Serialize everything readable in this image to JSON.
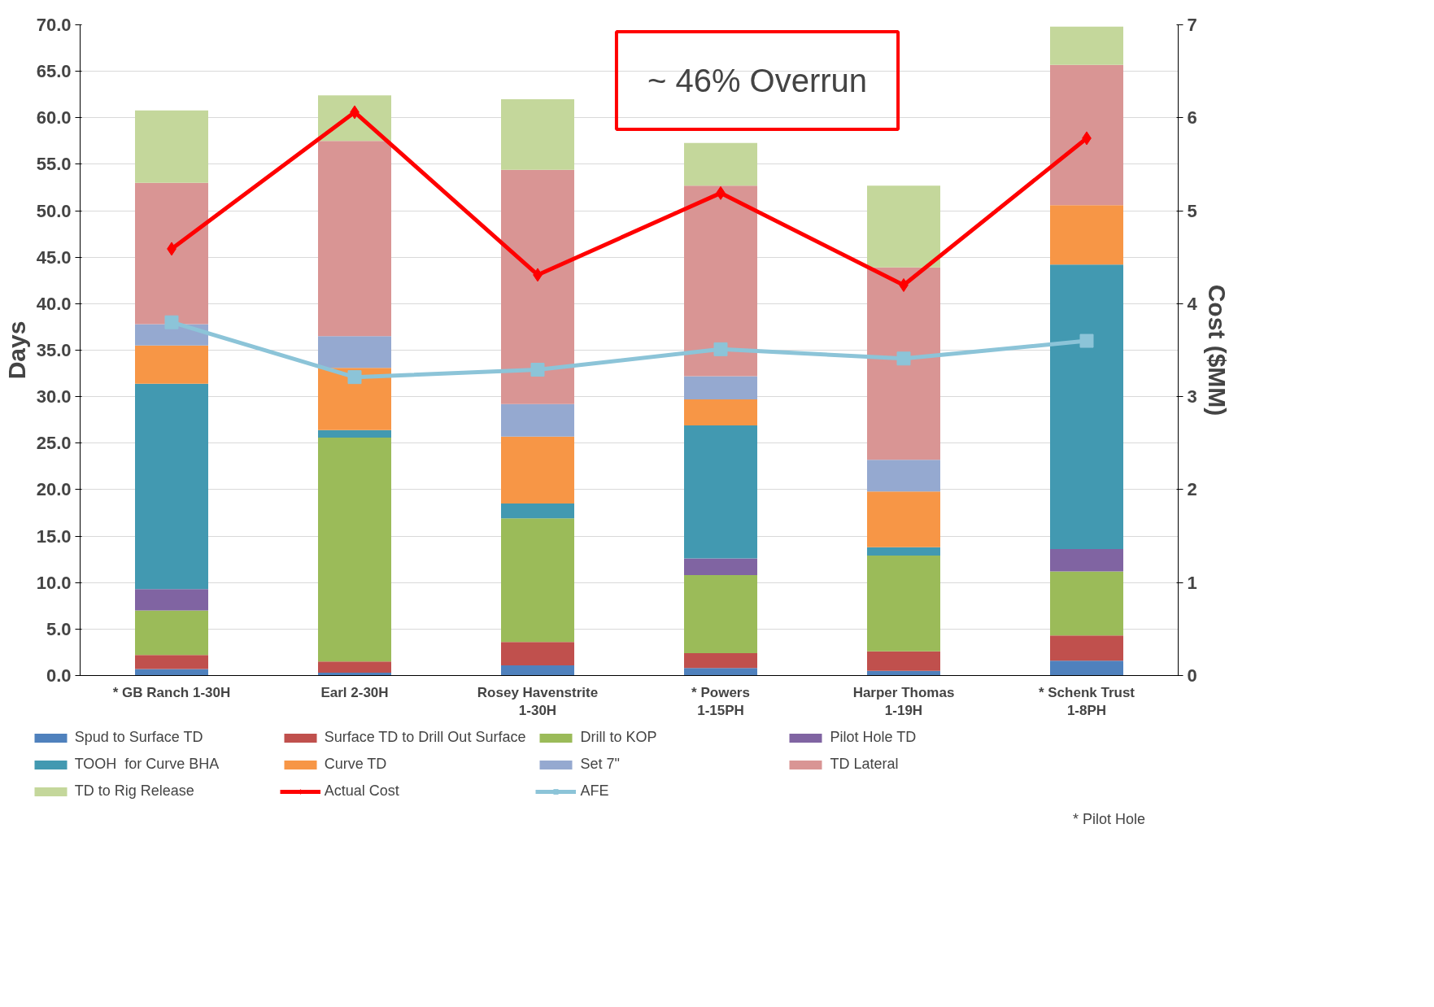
{
  "chart_data": {
    "type": "bar",
    "stacked": true,
    "ylabel": "Days",
    "y2label": "Cost ($MM)",
    "categories": [
      "* GB Ranch 1-30H",
      "Earl 2-30H",
      "Rosey Havenstrite\n1-30H",
      "* Powers\n1-15PH",
      "Harper Thomas\n1-19H",
      "* Schenk Trust\n1-8PH"
    ],
    "series": [
      {
        "name": "Spud to Surface TD",
        "color": "#4f81bd",
        "values": [
          0.7,
          0.3,
          1.1,
          0.8,
          0.5,
          1.6
        ]
      },
      {
        "name": "Surface TD to Drill Out Surface",
        "color": "#c0504d",
        "values": [
          1.5,
          1.2,
          2.5,
          1.6,
          2.1,
          2.7
        ]
      },
      {
        "name": "Drill to KOP",
        "color": "#9bbb59",
        "values": [
          4.8,
          24.1,
          13.3,
          8.4,
          10.3,
          6.9
        ]
      },
      {
        "name": "Pilot Hole TD",
        "color": "#8064a2",
        "values": [
          2.3,
          0,
          0,
          1.8,
          0,
          2.4
        ]
      },
      {
        "name": "TOOH  for Curve BHA",
        "color": "#4299b1",
        "values": [
          22.1,
          0.8,
          1.6,
          14.3,
          0.9,
          30.6
        ]
      },
      {
        "name": "Curve TD",
        "color": "#f79646",
        "values": [
          4.1,
          6.7,
          7.2,
          2.8,
          6.0,
          6.4
        ]
      },
      {
        "name": "Set 7\"",
        "color": "#95a9d0",
        "values": [
          2.3,
          3.4,
          3.5,
          2.5,
          3.4,
          0
        ]
      },
      {
        "name": "TD Lateral",
        "color": "#d99594",
        "values": [
          15.2,
          21.0,
          25.2,
          20.5,
          20.7,
          15.1
        ]
      },
      {
        "name": "TD to Rig Release",
        "color": "#c4d79b",
        "values": [
          7.8,
          4.9,
          7.6,
          4.6,
          8.8,
          4.1
        ]
      },
      {
        "name": "Actual Cost",
        "type": "line",
        "axis": "y2",
        "marker": "diamond",
        "color": "#ff0000",
        "values": [
          4.59,
          6.06,
          4.31,
          5.19,
          4.2,
          5.78
        ]
      },
      {
        "name": "AFE",
        "type": "line",
        "axis": "y2",
        "marker": "square",
        "color": "#8cc4d8",
        "values": [
          3.8,
          3.21,
          3.29,
          3.51,
          3.41,
          3.6
        ]
      }
    ],
    "ylim": [
      0,
      70
    ],
    "yticks": [
      {
        "value": 0,
        "label": "0.0"
      },
      {
        "value": 5,
        "label": "5.0"
      },
      {
        "value": 10,
        "label": "10.0"
      },
      {
        "value": 15,
        "label": "15.0"
      },
      {
        "value": 20,
        "label": "20.0"
      },
      {
        "value": 25,
        "label": "25.0"
      },
      {
        "value": 30,
        "label": "30.0"
      },
      {
        "value": 35,
        "label": "35.0"
      },
      {
        "value": 40,
        "label": "40.0"
      },
      {
        "value": 45,
        "label": "45.0"
      },
      {
        "value": 50,
        "label": "50.0"
      },
      {
        "value": 55,
        "label": "55.0"
      },
      {
        "value": 60,
        "label": "60.0"
      },
      {
        "value": 65,
        "label": "65.0"
      },
      {
        "value": 70,
        "label": "70.0"
      }
    ],
    "y2lim": [
      0,
      7
    ],
    "y2ticks": [
      0,
      1,
      2,
      3,
      4,
      5,
      6,
      7
    ],
    "grid": "y",
    "legend": "bottom",
    "annotations": [
      "~ 46% Overrun",
      "* Pilot Hole"
    ]
  }
}
